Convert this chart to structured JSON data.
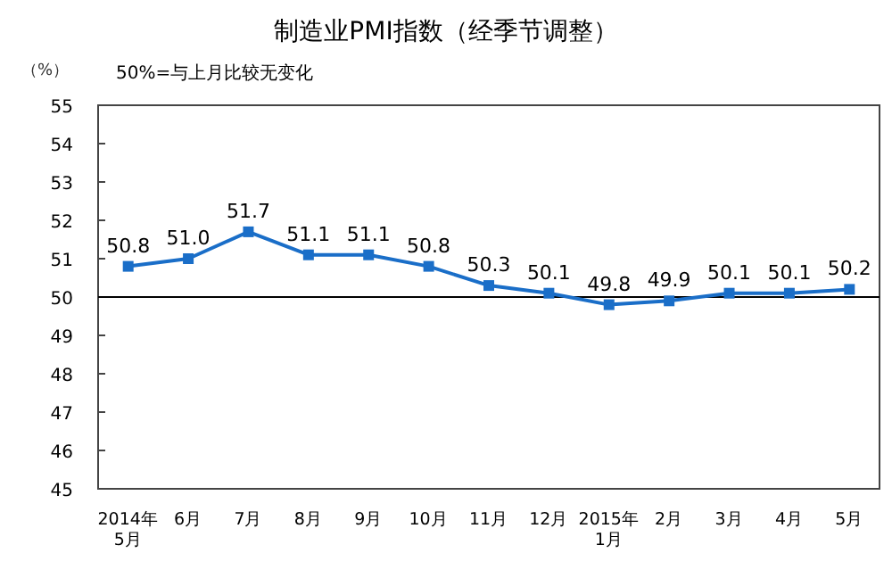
{
  "chart_data": {
    "type": "line",
    "title": "制造业PMI指数（经季节调整）",
    "ylabel": "（%）",
    "annotations": [
      "50%=与上月比较无变化"
    ],
    "categories": [
      "2014年\n5月",
      "6月",
      "7月",
      "8月",
      "9月",
      "10月",
      "11月",
      "12月",
      "2015年\n1月",
      "2月",
      "3月",
      "4月",
      "5月"
    ],
    "series": [
      {
        "color": "#1a6ec8",
        "values": [
          50.8,
          51.0,
          51.7,
          51.1,
          51.1,
          50.8,
          50.3,
          50.1,
          49.8,
          49.9,
          50.1,
          50.1,
          50.2
        ],
        "value_labels": [
          "50.8",
          "51.0",
          "51.7",
          "51.1",
          "51.1",
          "50.8",
          "50.3",
          "50.1",
          "49.8",
          "49.9",
          "50.1",
          "50.1",
          "50.2"
        ]
      }
    ],
    "ylim": [
      45,
      55
    ],
    "yticks": [
      45,
      46,
      47,
      48,
      49,
      50,
      51,
      52,
      53,
      54,
      55
    ],
    "ref_lines": [
      {
        "axis": "y",
        "value": 50,
        "color": "#000000"
      }
    ],
    "marker": "square",
    "grid": false
  }
}
